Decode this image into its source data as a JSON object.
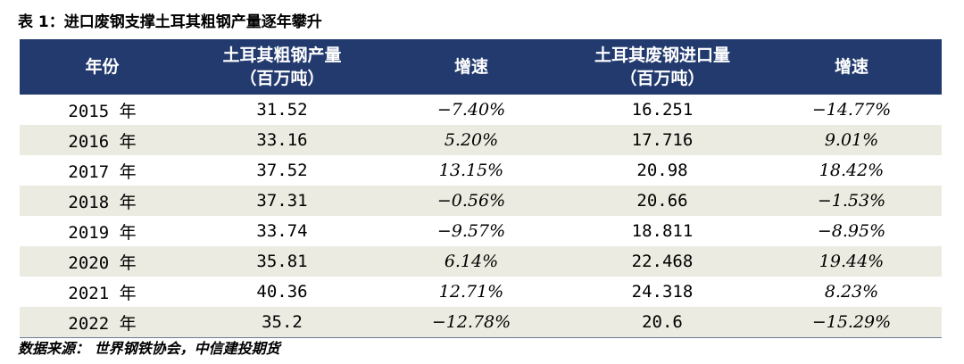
{
  "caption": "表 1：进口废钢支撑土耳其粗钢产量逐年攀升",
  "headers": {
    "year": "年份",
    "crude_line1": "土耳其粗钢产量",
    "crude_line2": "（百万吨）",
    "growth1": "增速",
    "scrap_line1": "土耳其废钢进口量",
    "scrap_line2": "（百万吨）",
    "growth2": "增速"
  },
  "rows": [
    {
      "year": "2015 年",
      "crude": "31.52",
      "crude_growth": "−7.40%",
      "scrap": "16.251",
      "scrap_growth": "−14.77%"
    },
    {
      "year": "2016 年",
      "crude": "33.16",
      "crude_growth": "5.20%",
      "scrap": "17.716",
      "scrap_growth": "9.01%"
    },
    {
      "year": "2017 年",
      "crude": "37.52",
      "crude_growth": "13.15%",
      "scrap": "20.98",
      "scrap_growth": "18.42%"
    },
    {
      "year": "2018 年",
      "crude": "37.31",
      "crude_growth": "−0.56%",
      "scrap": "20.66",
      "scrap_growth": "−1.53%"
    },
    {
      "year": "2019 年",
      "crude": "33.74",
      "crude_growth": "−9.57%",
      "scrap": "18.811",
      "scrap_growth": "−8.95%"
    },
    {
      "year": "2020 年",
      "crude": "35.81",
      "crude_growth": "6.14%",
      "scrap": "22.468",
      "scrap_growth": "19.44%"
    },
    {
      "year": "2021 年",
      "crude": "40.36",
      "crude_growth": "12.71%",
      "scrap": "24.318",
      "scrap_growth": "8.23%"
    },
    {
      "year": "2022 年",
      "crude": "35.2",
      "crude_growth": "−12.78%",
      "scrap": "20.6",
      "scrap_growth": "−15.29%"
    }
  ],
  "source": "数据来源：  世界钢铁协会，中信建投期货",
  "colors": {
    "header_bg": "#223a6e",
    "header_text": "#ffffff",
    "stripe": "#ecebe1"
  }
}
